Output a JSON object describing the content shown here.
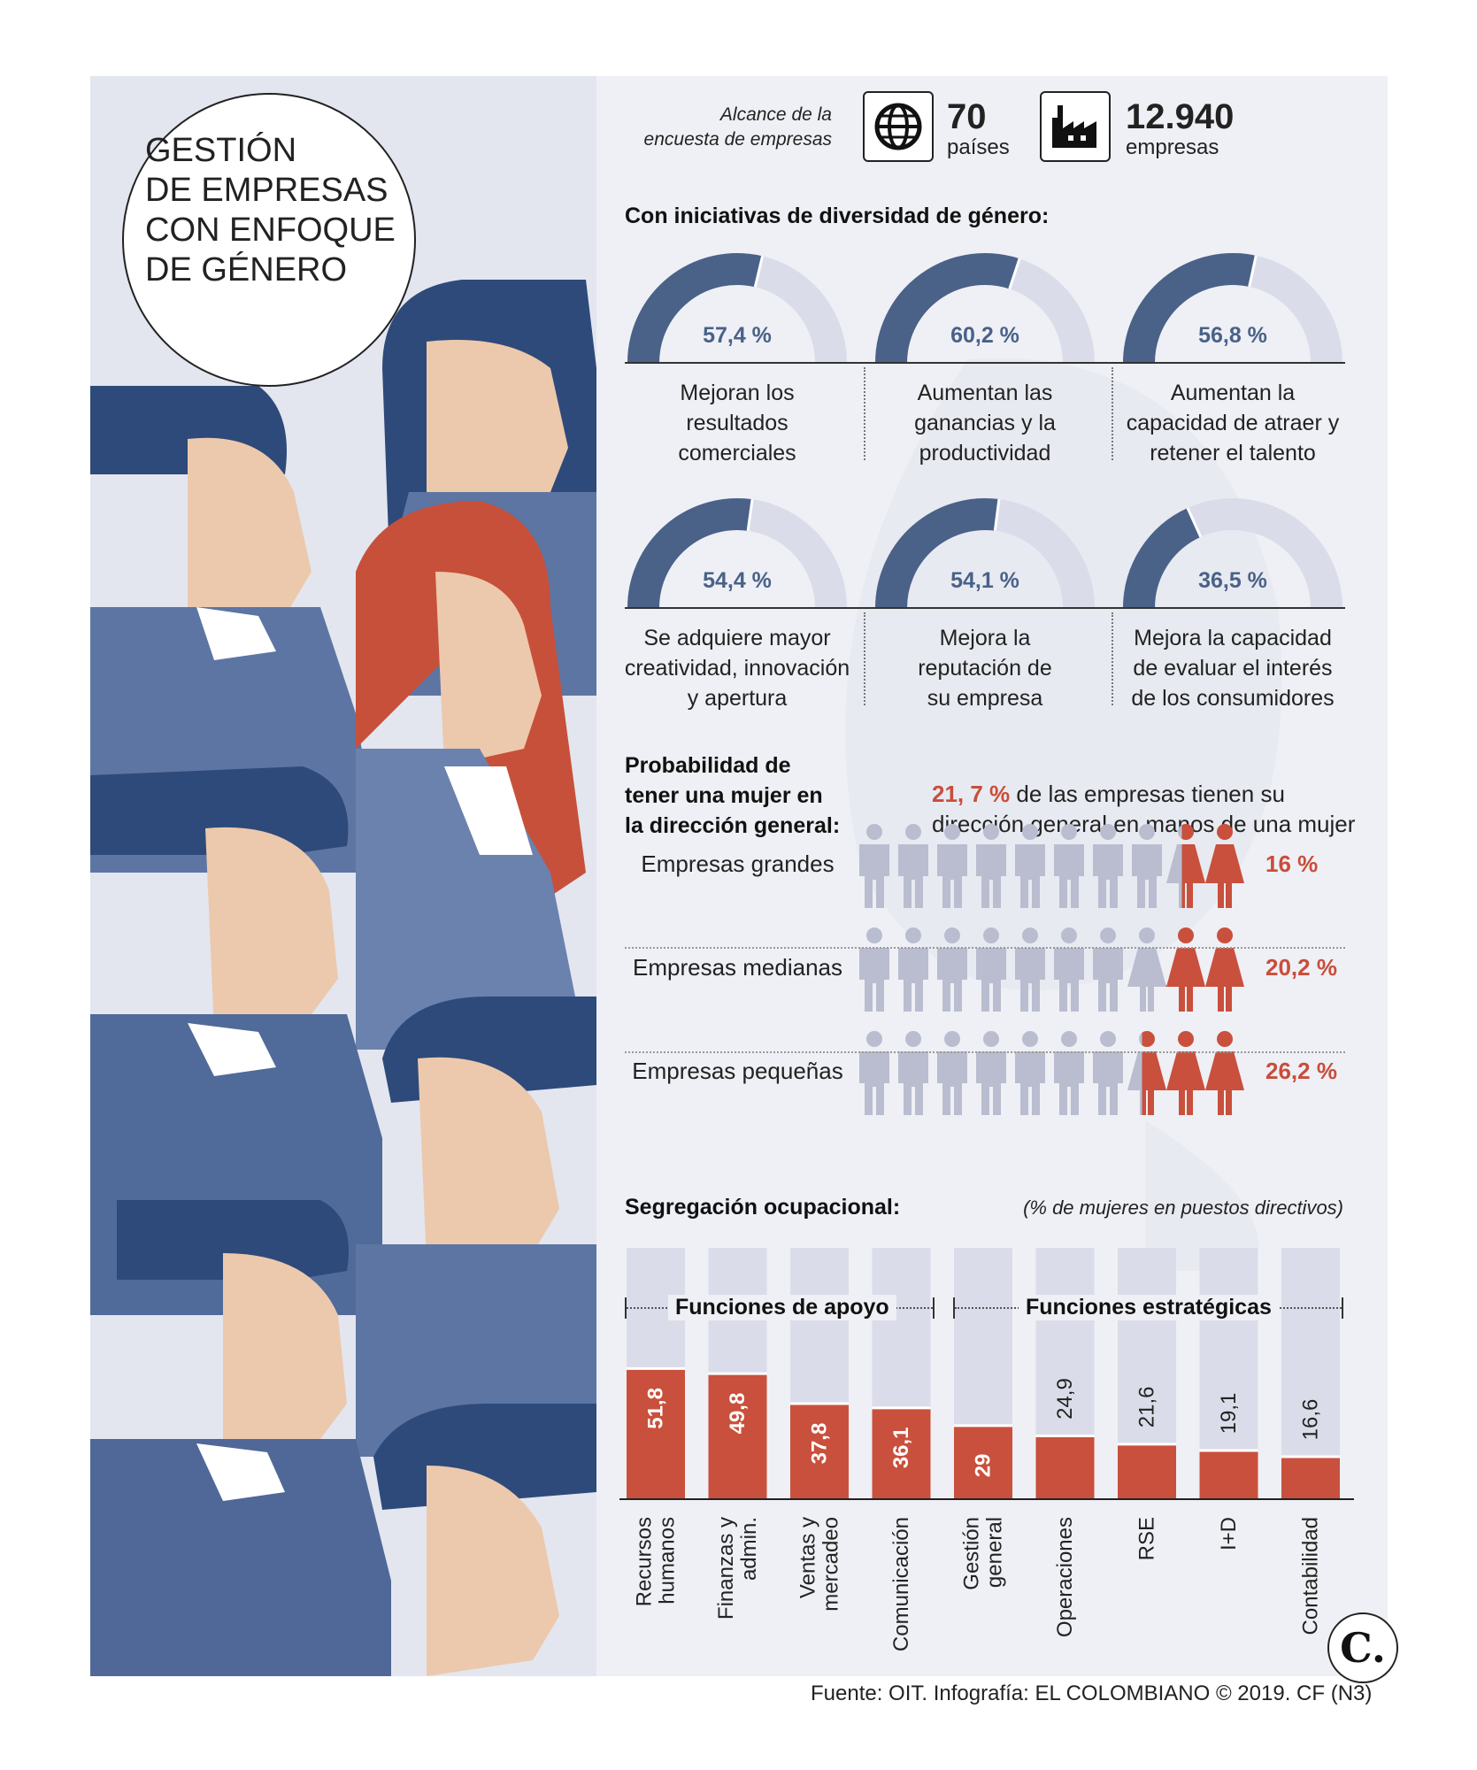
{
  "title": "GESTIÓN DE EMPRESAS CON ENFOQUE DE GÉNERO",
  "title_lines": [
    "GESTIÓN",
    "DE EMPRESAS",
    "CON ENFOQUE",
    "DE GÉNERO"
  ],
  "scope": {
    "label_lines": [
      "Alcance de la",
      "encuesta de empresas"
    ],
    "countries_value": "70",
    "countries_label": "países",
    "companies_value": "12.940",
    "companies_label": "empresas",
    "icons": [
      "globe-icon",
      "factory-icon"
    ]
  },
  "initiatives_title": "Con iniciativas de diversidad de género:",
  "colors": {
    "dark_blue": "#4a6188",
    "light_blue": "#dadde9",
    "red": "#c9503c",
    "grey_person": "#b9bdcf"
  },
  "donuts": [
    {
      "pct_label": "57,4 %",
      "value": 57.4,
      "desc_lines": [
        "Mejoran los",
        "resultados",
        "comerciales"
      ]
    },
    {
      "pct_label": "60,2 %",
      "value": 60.2,
      "desc_lines": [
        "Aumentan las",
        "ganancias y la",
        "productividad"
      ]
    },
    {
      "pct_label": "56,8 %",
      "value": 56.8,
      "desc_lines": [
        "Aumentan la",
        "capacidad de atraer y",
        "retener el talento"
      ]
    },
    {
      "pct_label": "54,4 %",
      "value": 54.4,
      "desc_lines": [
        "Se adquiere mayor",
        "creatividad, innovación",
        "y apertura"
      ]
    },
    {
      "pct_label": "54,1 %",
      "value": 54.1,
      "desc_lines": [
        "Mejora la",
        "reputación de",
        "su empresa"
      ]
    },
    {
      "pct_label": "36,5 %",
      "value": 36.5,
      "desc_lines": [
        "Mejora la capacidad",
        "de evaluar el interés",
        "de los consumidores"
      ]
    }
  ],
  "probability": {
    "title_lines": [
      "Probabilidad de",
      "tener una mujer en",
      "la dirección general:"
    ],
    "highlight": "21, 7 %",
    "text_line1": " de las empresas tienen su",
    "text_line2": "dirección general en manos de una mujer",
    "rows": [
      {
        "label": "Empresas grandes",
        "pct_label": "16 %",
        "value": 16
      },
      {
        "label": "Empresas medianas",
        "pct_label": "20,2 %",
        "value": 20.2
      },
      {
        "label": "Empresas pequeñas",
        "pct_label": "26,2 %",
        "value": 26.2
      }
    ]
  },
  "segregation": {
    "title": "Segregación ocupacional:",
    "subtitle": "(% de mujeres en puestos directivos)",
    "group_support": "Funciones de apoyo",
    "group_strategic": "Funciones estratégicas"
  },
  "chart_data": {
    "type": "bar",
    "title": "Segregación ocupacional:",
    "subtitle": "(% de mujeres en puestos directivos)",
    "categories": [
      [
        "Recursos",
        "humanos"
      ],
      [
        "Finanzas y",
        "admin."
      ],
      [
        "Ventas y",
        "mercadeo"
      ],
      [
        "Comunicación"
      ],
      [
        "Gestión",
        "general"
      ],
      [
        "Operaciones"
      ],
      [
        "RSE"
      ],
      [
        "I+D"
      ],
      [
        "Contabilidad"
      ]
    ],
    "values": [
      51.8,
      49.8,
      37.8,
      36.1,
      29,
      24.9,
      21.6,
      19.1,
      16.6
    ],
    "value_labels": [
      "51,8",
      "49,8",
      "37,8",
      "36,1",
      "29",
      "24,9",
      "21,6",
      "19,1",
      "16,6"
    ],
    "ylim": [
      0,
      100
    ],
    "groups": [
      {
        "name": "Funciones de apoyo",
        "categories": [
          0,
          1,
          2,
          3
        ]
      },
      {
        "name": "Funciones estratégicas",
        "categories": [
          4,
          5,
          6,
          7,
          8
        ]
      }
    ]
  },
  "logo_text": "C.",
  "footer": "Fuente: OIT. Infografía: EL COLOMBIANO © 2019. CF (N3)"
}
